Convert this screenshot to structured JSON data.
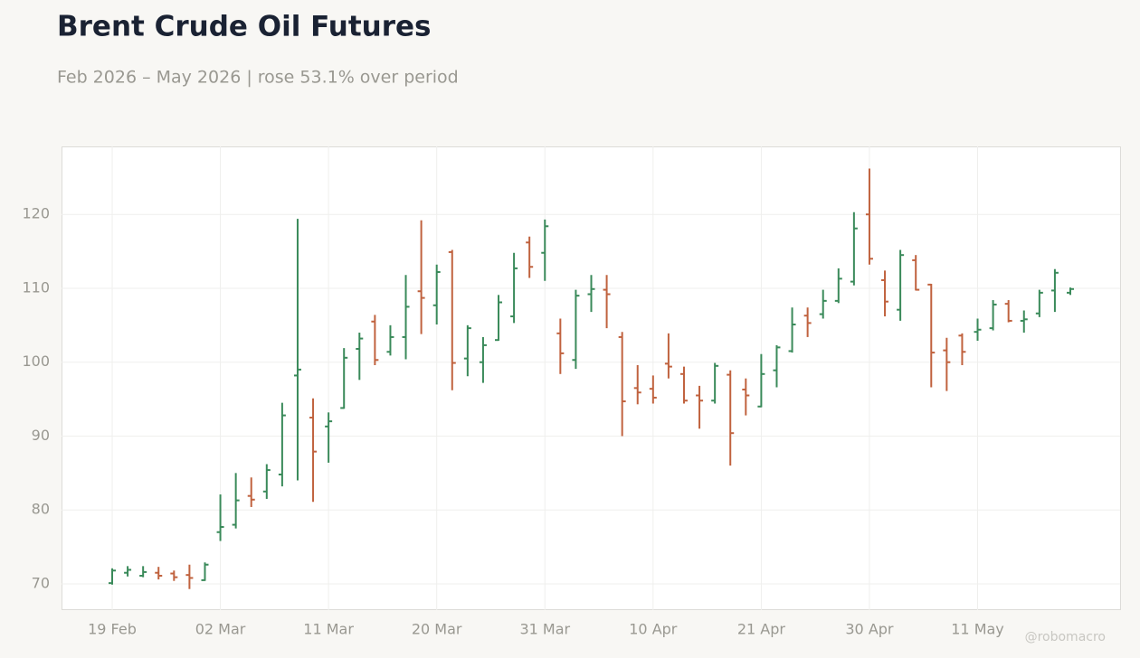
{
  "chart_data": {
    "type": "ohlc",
    "title": "Brent Crude Oil Futures",
    "subtitle": "Feb 2026 – May 2026 | rose 53.1% over period",
    "watermark": "@robomacro",
    "categories": [
      "19 Feb",
      null,
      null,
      null,
      null,
      null,
      null,
      "02 Mar",
      null,
      null,
      null,
      null,
      null,
      null,
      "11 Mar",
      null,
      null,
      null,
      null,
      null,
      null,
      "20 Mar",
      null,
      null,
      null,
      null,
      null,
      null,
      "31 Mar",
      null,
      null,
      null,
      null,
      null,
      null,
      "10 Apr",
      null,
      null,
      null,
      null,
      null,
      null,
      "21 Apr",
      null,
      null,
      null,
      null,
      null,
      null,
      "30 Apr",
      null,
      null,
      null,
      null,
      null,
      null,
      "11 May",
      null,
      null,
      null,
      null,
      null,
      null
    ],
    "open": [
      70.1,
      71.5,
      71.1,
      71.5,
      71.4,
      71.2,
      70.5,
      77.0,
      78.0,
      81.9,
      82.5,
      84.8,
      98.2,
      92.5,
      91.3,
      93.8,
      101.8,
      105.5,
      101.4,
      103.4,
      109.6,
      107.7,
      114.9,
      100.5,
      100.0,
      103.0,
      106.2,
      116.2,
      114.8,
      103.9,
      100.3,
      109.2,
      109.8,
      103.4,
      96.5,
      96.4,
      99.8,
      98.4,
      95.5,
      94.8,
      98.3,
      96.3,
      94.0,
      98.9,
      101.5,
      106.3,
      106.5,
      108.3,
      110.9,
      120.0,
      111.1,
      107.1,
      113.8,
      110.5,
      101.6,
      103.6,
      104.1,
      104.6,
      107.9,
      105.6,
      106.6,
      109.7,
      109.4
    ],
    "high": [
      72.1,
      72.4,
      72.4,
      72.3,
      71.8,
      72.6,
      72.9,
      82.1,
      85.0,
      84.4,
      86.2,
      94.5,
      119.4,
      95.1,
      93.2,
      101.9,
      104.0,
      106.4,
      105.0,
      111.8,
      119.2,
      113.2,
      115.2,
      105.0,
      103.4,
      109.1,
      114.8,
      117.0,
      119.3,
      105.9,
      109.8,
      111.8,
      111.8,
      104.1,
      99.6,
      98.2,
      103.9,
      99.4,
      96.8,
      99.9,
      98.9,
      97.8,
      101.1,
      102.3,
      107.4,
      107.4,
      109.8,
      112.7,
      120.3,
      126.2,
      112.4,
      115.2,
      114.5,
      110.6,
      103.3,
      103.9,
      105.9,
      108.4,
      108.4,
      107.0,
      109.8,
      112.6,
      110.1
    ],
    "low": [
      69.9,
      71.0,
      70.9,
      70.6,
      70.4,
      69.3,
      70.4,
      75.8,
      77.5,
      80.4,
      81.5,
      83.2,
      84.0,
      81.1,
      86.4,
      93.7,
      97.6,
      99.6,
      100.9,
      100.4,
      103.8,
      105.1,
      96.2,
      98.1,
      97.2,
      102.9,
      105.3,
      111.4,
      111.0,
      98.4,
      99.1,
      106.8,
      104.6,
      90.0,
      94.3,
      94.4,
      97.8,
      94.4,
      91.0,
      94.4,
      86.0,
      92.8,
      93.9,
      96.6,
      101.3,
      103.4,
      105.9,
      108.0,
      110.4,
      113.2,
      106.2,
      105.6,
      109.7,
      96.6,
      96.1,
      99.6,
      102.9,
      104.3,
      105.4,
      104.0,
      106.1,
      106.8,
      109.1
    ],
    "close": [
      71.8,
      71.9,
      71.6,
      71.1,
      70.9,
      70.8,
      72.6,
      77.7,
      81.3,
      81.4,
      85.4,
      92.8,
      99.0,
      87.9,
      92.0,
      100.6,
      103.2,
      100.3,
      103.4,
      107.5,
      108.7,
      112.2,
      99.9,
      104.6,
      102.3,
      108.1,
      112.7,
      112.9,
      118.4,
      101.2,
      109.0,
      109.9,
      109.2,
      94.7,
      95.9,
      95.2,
      99.4,
      94.8,
      94.8,
      99.5,
      90.4,
      95.5,
      98.4,
      102.0,
      105.1,
      105.3,
      108.3,
      111.3,
      118.1,
      114.0,
      108.2,
      114.5,
      109.8,
      101.3,
      100.0,
      101.4,
      104.4,
      107.8,
      105.6,
      105.8,
      109.4,
      112.1,
      109.9
    ],
    "up_color": "#3a8a5a",
    "down_color": "#c0623e",
    "ylim": [
      66.45,
      129.2
    ],
    "yticks": [
      70,
      80,
      90,
      100,
      110,
      120
    ],
    "grid": true
  }
}
